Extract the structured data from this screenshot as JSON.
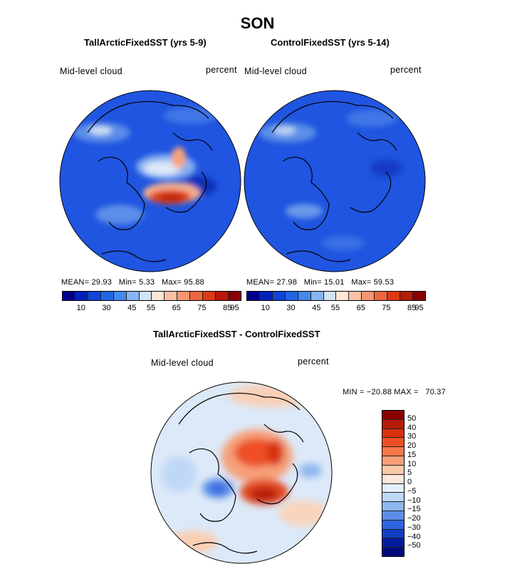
{
  "figure": {
    "title": "SON",
    "diff_title": "TallArcticFixedSST - ControlFixedSST",
    "colors": {
      "full_scale": [
        "#00008f",
        "#0022b8",
        "#1144d8",
        "#2266e6",
        "#4488ee",
        "#88b4f2",
        "#cfe2f7",
        "#fde6d6",
        "#f9c0a2",
        "#f69670",
        "#ee6640",
        "#dd3a1a",
        "#b61a08",
        "#8a0000"
      ],
      "diff_scale": [
        "#8a0000",
        "#b61a08",
        "#d8300f",
        "#ee5025",
        "#f6784b",
        "#f9a077",
        "#fbc8aa",
        "#fde8dc",
        "#e6f0fa",
        "#bfd8f5",
        "#8db6ef",
        "#5c8ee8",
        "#2e64df",
        "#123dc4",
        "#001c9e",
        "#000a7a"
      ]
    }
  },
  "panels": [
    {
      "id": "tall",
      "subtitle": "TallArcticFixedSST (yrs 5-9)",
      "variable": "Mid-level cloud",
      "units": "percent",
      "mean_label": "MEAN=",
      "mean": "29.93",
      "min_label": "Min=",
      "min": "5.33",
      "max_label": "Max=",
      "max": "95.88",
      "ticks": [
        "10",
        "30",
        "45",
        "55",
        "65",
        "75",
        "85",
        "95"
      ]
    },
    {
      "id": "control",
      "subtitle": "ControlFixedSST (yrs 5-14)",
      "variable": "Mid-level cloud",
      "units": "percent",
      "mean_label": "MEAN=",
      "mean": "27.98",
      "min_label": "Min=",
      "min": "15.01",
      "max_label": "Max=",
      "max": "59.53",
      "ticks": [
        "10",
        "30",
        "45",
        "55",
        "65",
        "75",
        "85",
        "95"
      ]
    }
  ],
  "diff": {
    "variable": "Mid-level cloud",
    "units": "percent",
    "minmax": "MIN = −20.88 MAX =   70.37",
    "levels": [
      "50",
      "40",
      "30",
      "20",
      "15",
      "10",
      "5",
      "0",
      "−5",
      "−10",
      "−15",
      "−20",
      "−30",
      "−40",
      "−50"
    ]
  }
}
